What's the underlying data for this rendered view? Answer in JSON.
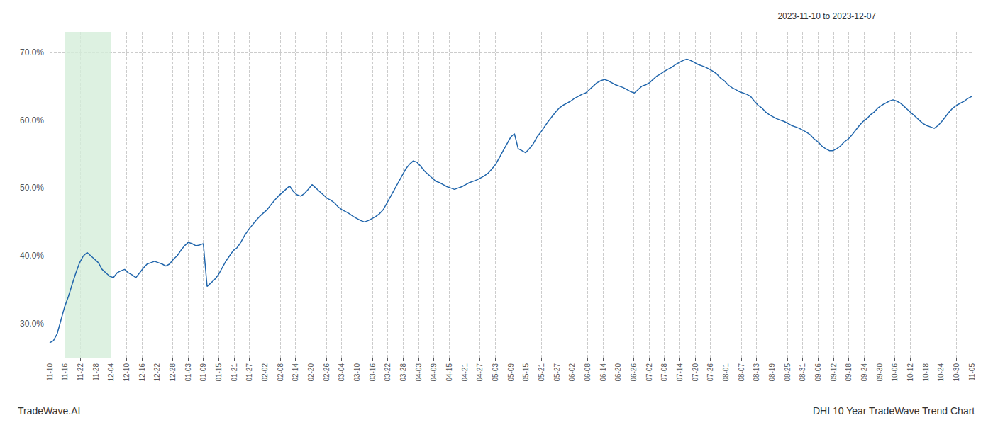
{
  "chart_data": {
    "type": "line",
    "title": "DHI 10 Year TradeWave Trend Chart",
    "subtitle": "2023-11-10 to 2023-12-07",
    "annotations": [
      "TradeWave.AI"
    ],
    "color": "#2166ac",
    "grid": true,
    "highlight": {
      "from": 4.1,
      "to": 16.4,
      "color": "#d4edda"
    },
    "xlim": [
      0,
      246
    ],
    "xticks": [
      {
        "value": 0,
        "label": "11-10"
      },
      {
        "value": 4.1,
        "label": "11-16"
      },
      {
        "value": 8.2,
        "label": "11-22"
      },
      {
        "value": 12.3,
        "label": "11-28"
      },
      {
        "value": 16.4,
        "label": "12-04"
      },
      {
        "value": 20.5,
        "label": "12-10"
      },
      {
        "value": 24.6,
        "label": "12-16"
      },
      {
        "value": 28.7,
        "label": "12-22"
      },
      {
        "value": 32.8,
        "label": "12-28"
      },
      {
        "value": 36.9,
        "label": "01-03"
      },
      {
        "value": 41,
        "label": "01-09"
      },
      {
        "value": 45.1,
        "label": "01-15"
      },
      {
        "value": 49.2,
        "label": "01-21"
      },
      {
        "value": 53.3,
        "label": "01-27"
      },
      {
        "value": 57.4,
        "label": "02-02"
      },
      {
        "value": 61.5,
        "label": "02-08"
      },
      {
        "value": 65.6,
        "label": "02-14"
      },
      {
        "value": 69.7,
        "label": "02-20"
      },
      {
        "value": 73.8,
        "label": "02-26"
      },
      {
        "value": 77.9,
        "label": "03-04"
      },
      {
        "value": 82,
        "label": "03-10"
      },
      {
        "value": 86.1,
        "label": "03-16"
      },
      {
        "value": 90.2,
        "label": "03-22"
      },
      {
        "value": 94.3,
        "label": "03-28"
      },
      {
        "value": 98.4,
        "label": "04-03"
      },
      {
        "value": 102.5,
        "label": "04-09"
      },
      {
        "value": 106.6,
        "label": "04-15"
      },
      {
        "value": 110.7,
        "label": "04-21"
      },
      {
        "value": 114.8,
        "label": "04-27"
      },
      {
        "value": 118.9,
        "label": "05-03"
      },
      {
        "value": 123,
        "label": "05-09"
      },
      {
        "value": 127.1,
        "label": "05-15"
      },
      {
        "value": 131.2,
        "label": "05-21"
      },
      {
        "value": 135.3,
        "label": "05-27"
      },
      {
        "value": 139.4,
        "label": "06-02"
      },
      {
        "value": 143.5,
        "label": "06-08"
      },
      {
        "value": 147.6,
        "label": "06-14"
      },
      {
        "value": 151.7,
        "label": "06-20"
      },
      {
        "value": 155.8,
        "label": "06-26"
      },
      {
        "value": 159.9,
        "label": "07-02"
      },
      {
        "value": 164,
        "label": "07-08"
      },
      {
        "value": 168.1,
        "label": "07-14"
      },
      {
        "value": 172.2,
        "label": "07-20"
      },
      {
        "value": 176.3,
        "label": "07-26"
      },
      {
        "value": 180.4,
        "label": "08-01"
      },
      {
        "value": 184.5,
        "label": "08-07"
      },
      {
        "value": 188.6,
        "label": "08-13"
      },
      {
        "value": 192.7,
        "label": "08-19"
      },
      {
        "value": 196.8,
        "label": "08-25"
      },
      {
        "value": 200.9,
        "label": "08-31"
      },
      {
        "value": 205,
        "label": "09-06"
      },
      {
        "value": 209.1,
        "label": "09-12"
      },
      {
        "value": 213.2,
        "label": "09-18"
      },
      {
        "value": 217.3,
        "label": "09-24"
      },
      {
        "value": 221.4,
        "label": "09-30"
      },
      {
        "value": 225.5,
        "label": "10-06"
      },
      {
        "value": 229.6,
        "label": "10-12"
      },
      {
        "value": 233.7,
        "label": "10-18"
      },
      {
        "value": 237.8,
        "label": "10-24"
      },
      {
        "value": 241.9,
        "label": "10-30"
      },
      {
        "value": 246,
        "label": "11-05"
      }
    ],
    "ylim": [
      0.25,
      0.73
    ],
    "yticks": [
      {
        "value": 0.3,
        "label": "30.0%"
      },
      {
        "value": 0.4,
        "label": "40.0%"
      },
      {
        "value": 0.5,
        "label": "50.0%"
      },
      {
        "value": 0.6,
        "label": "60.0%"
      },
      {
        "value": 0.7,
        "label": "70.0%"
      }
    ],
    "values": [
      0.272,
      0.275,
      0.285,
      0.305,
      0.325,
      0.34,
      0.358,
      0.375,
      0.39,
      0.4,
      0.405,
      0.4,
      0.395,
      0.39,
      0.38,
      0.375,
      0.37,
      0.368,
      0.375,
      0.378,
      0.38,
      0.375,
      0.372,
      0.368,
      0.375,
      0.382,
      0.388,
      0.39,
      0.392,
      0.39,
      0.388,
      0.385,
      0.388,
      0.395,
      0.4,
      0.408,
      0.415,
      0.42,
      0.418,
      0.415,
      0.416,
      0.418,
      0.355,
      0.36,
      0.365,
      0.372,
      0.382,
      0.392,
      0.4,
      0.408,
      0.412,
      0.42,
      0.43,
      0.438,
      0.445,
      0.452,
      0.458,
      0.463,
      0.468,
      0.475,
      0.482,
      0.488,
      0.493,
      0.498,
      0.503,
      0.495,
      0.49,
      0.488,
      0.492,
      0.498,
      0.505,
      0.5,
      0.495,
      0.49,
      0.485,
      0.482,
      0.478,
      0.472,
      0.468,
      0.465,
      0.462,
      0.458,
      0.455,
      0.452,
      0.45,
      0.452,
      0.455,
      0.458,
      0.462,
      0.468,
      0.478,
      0.488,
      0.498,
      0.508,
      0.518,
      0.528,
      0.535,
      0.54,
      0.538,
      0.532,
      0.525,
      0.52,
      0.515,
      0.51,
      0.508,
      0.505,
      0.502,
      0.5,
      0.498,
      0.5,
      0.502,
      0.505,
      0.508,
      0.51,
      0.512,
      0.515,
      0.518,
      0.522,
      0.528,
      0.535,
      0.545,
      0.555,
      0.565,
      0.575,
      0.58,
      0.558,
      0.555,
      0.552,
      0.558,
      0.565,
      0.575,
      0.582,
      0.59,
      0.598,
      0.605,
      0.612,
      0.618,
      0.622,
      0.625,
      0.628,
      0.632,
      0.635,
      0.638,
      0.64,
      0.645,
      0.65,
      0.655,
      0.658,
      0.66,
      0.658,
      0.655,
      0.652,
      0.65,
      0.648,
      0.645,
      0.642,
      0.64,
      0.645,
      0.65,
      0.652,
      0.655,
      0.66,
      0.665,
      0.668,
      0.672,
      0.675,
      0.678,
      0.682,
      0.685,
      0.688,
      0.69,
      0.688,
      0.685,
      0.682,
      0.68,
      0.678,
      0.675,
      0.672,
      0.668,
      0.662,
      0.658,
      0.652,
      0.648,
      0.645,
      0.642,
      0.64,
      0.638,
      0.635,
      0.628,
      0.622,
      0.618,
      0.612,
      0.608,
      0.605,
      0.602,
      0.6,
      0.598,
      0.595,
      0.592,
      0.59,
      0.588,
      0.585,
      0.582,
      0.578,
      0.572,
      0.568,
      0.562,
      0.558,
      0.555,
      0.555,
      0.558,
      0.562,
      0.568,
      0.572,
      0.578,
      0.585,
      0.592,
      0.598,
      0.602,
      0.608,
      0.612,
      0.618,
      0.622,
      0.625,
      0.628,
      0.63,
      0.628,
      0.625,
      0.62,
      0.615,
      0.61,
      0.605,
      0.6,
      0.595,
      0.592,
      0.59,
      0.588,
      0.592,
      0.598,
      0.605,
      0.612,
      0.618,
      0.622,
      0.625,
      0.628,
      0.632,
      0.635
    ]
  }
}
